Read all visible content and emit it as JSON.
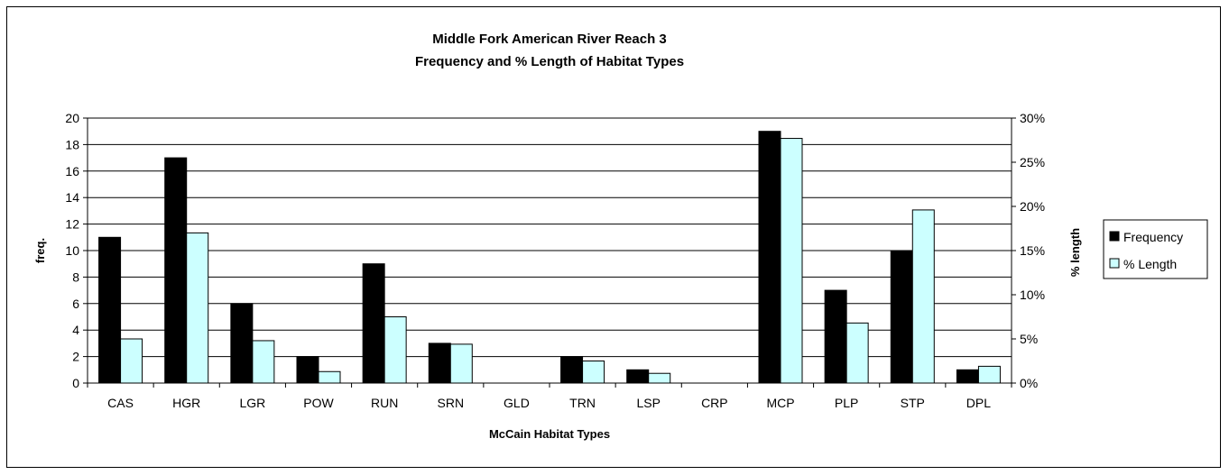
{
  "chart_data": {
    "type": "bar",
    "title_line1": "Middle Fork American River Reach 3",
    "title_line2": "Frequency and % Length of Habitat Types",
    "xlabel": "McCain Habitat Types",
    "ylabel_left": "freq.",
    "ylabel_right": "% length",
    "categories": [
      "CAS",
      "HGR",
      "LGR",
      "POW",
      "RUN",
      "SRN",
      "GLD",
      "TRN",
      "LSP",
      "CRP",
      "MCP",
      "PLP",
      "STP",
      "DPL"
    ],
    "ylim_left": [
      0,
      20
    ],
    "yticks_left": [
      "0",
      "2",
      "4",
      "6",
      "8",
      "10",
      "12",
      "14",
      "16",
      "18",
      "20"
    ],
    "ylim_right": [
      0,
      30
    ],
    "yticks_right": [
      "0%",
      "5%",
      "10%",
      "15%",
      "20%",
      "25%",
      "30%"
    ],
    "series": [
      {
        "name": "Frequency",
        "axis": "left",
        "color": "#000000",
        "values": [
          11,
          17,
          6,
          2,
          9,
          3,
          0,
          2,
          1,
          0,
          19,
          7,
          10,
          1
        ]
      },
      {
        "name": "% Length",
        "axis": "right",
        "color": "#ccffff",
        "values": [
          5.0,
          17.0,
          4.8,
          1.3,
          7.5,
          4.4,
          0,
          2.5,
          1.1,
          0,
          27.7,
          6.8,
          19.6,
          1.9
        ]
      }
    ],
    "grid": true,
    "legend_position": "right"
  }
}
